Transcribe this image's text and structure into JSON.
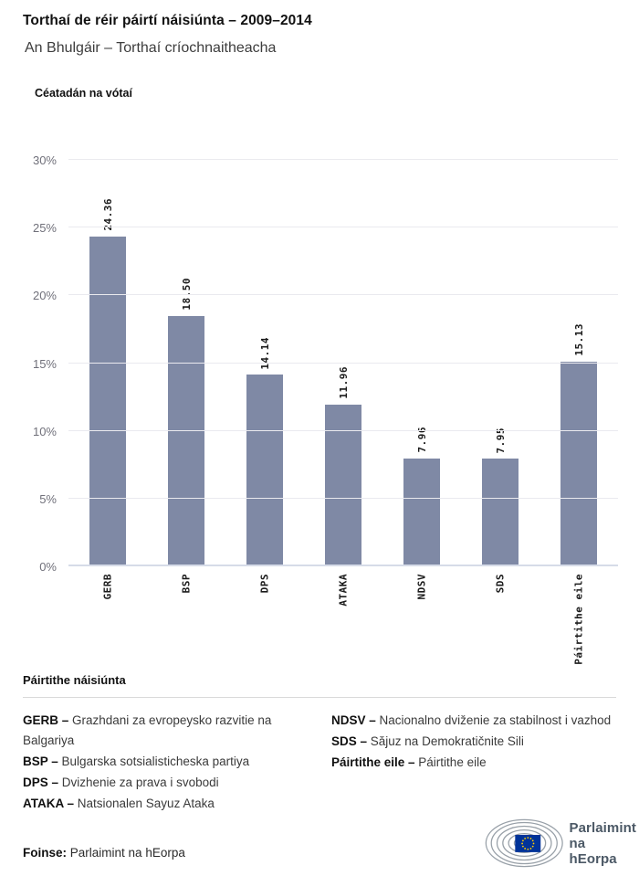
{
  "header": {
    "title": "Torthaí de réir páirtí náisiúnta – 2009–2014",
    "subtitle": "An Bhulgáir – Torthaí críochnaitheacha"
  },
  "chart": {
    "axis_title": "Céatadán na vótaí",
    "bar_color": "#7f89a5",
    "y_tick_suffix": "%"
  },
  "chart_data": {
    "type": "bar",
    "title": "Torthaí de réir páirtí náisiúnta – 2009–2014",
    "subtitle": "An Bhulgáir – Torthaí críochnaitheacha",
    "ylabel": "Céatadán na vótaí",
    "categories": [
      "GERB",
      "BSP",
      "DPS",
      "ATAKA",
      "NDSV",
      "SDS",
      "Páirtithe eile"
    ],
    "values": [
      24.36,
      18.5,
      14.14,
      11.96,
      7.96,
      7.95,
      15.13
    ],
    "value_labels": [
      "24.36",
      "18.50",
      "14.14",
      "11.96",
      "7.96",
      "7.95",
      "15.13"
    ],
    "ylim": [
      0,
      30
    ],
    "yticks": [
      0,
      5,
      10,
      15,
      20,
      25,
      30
    ],
    "grid": true,
    "legend_position": "none",
    "bar_color": "#7f89a5"
  },
  "legend": {
    "title": "Páirtithe náisiúnta",
    "left": [
      {
        "abbr": "GERB –",
        "name": "Grazhdani za evropeysko razvitie na Balgariya"
      },
      {
        "abbr": "BSP –",
        "name": "Bulgarska sotsialisticheska partiya"
      },
      {
        "abbr": "DPS –",
        "name": "Dvizhenie za prava i svobodi"
      },
      {
        "abbr": "ATAKA –",
        "name": "Natsionalen Sayuz Ataka"
      }
    ],
    "right": [
      {
        "abbr": "NDSV –",
        "name": "Nacionalno dviženie za stabilnost i vazhod"
      },
      {
        "abbr": "SDS –",
        "name": "Săjuz na Demokratičnite Sili"
      },
      {
        "abbr": "Páirtithe eile –",
        "name": "Páirtithe eile"
      }
    ]
  },
  "footer": {
    "source_label": "Foinse:",
    "source_text": "Parlaimint na hEorpa",
    "logo_line1": "Parlaimint",
    "logo_line2": "na hEorpa",
    "logo_colors": {
      "flag_blue": "#003399",
      "star_yellow": "#ffcc00",
      "arc_gray": "#98a0a8",
      "text": "#4c5966"
    }
  }
}
